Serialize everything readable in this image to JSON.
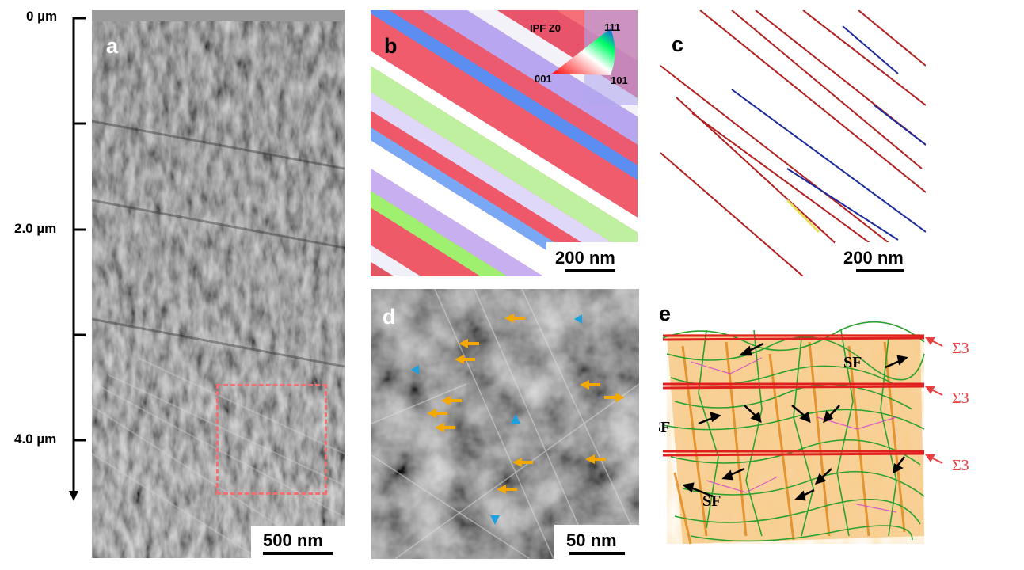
{
  "depth_axis": {
    "labels": [
      "0 µm",
      "2.0 µm",
      "4.0 µm"
    ]
  },
  "panels": {
    "a": {
      "letter": "a",
      "scale_bar": "500 nm"
    },
    "b": {
      "letter": "b",
      "scale_bar": "200 nm",
      "ipf": {
        "title": "IPF Z0",
        "corner_111": "111",
        "corner_001": "001",
        "corner_101": "101"
      }
    },
    "c": {
      "letter": "c",
      "scale_bar": "200 nm"
    },
    "d": {
      "letter": "d",
      "scale_bar": "50 nm"
    },
    "e": {
      "letter": "e",
      "sf_labels": [
        "SF",
        "SF",
        "SF"
      ],
      "sigma_labels": [
        "Σ3",
        "Σ3",
        "Σ3"
      ]
    }
  },
  "colors": {
    "dashed_box": "#f07070",
    "arrow_orange": "#f5a800",
    "arrow_blue": "#1ea0e0",
    "sigma_red": "#e84040",
    "boundary_red": "#b02020",
    "boundary_blue": "#1a2a9a"
  }
}
